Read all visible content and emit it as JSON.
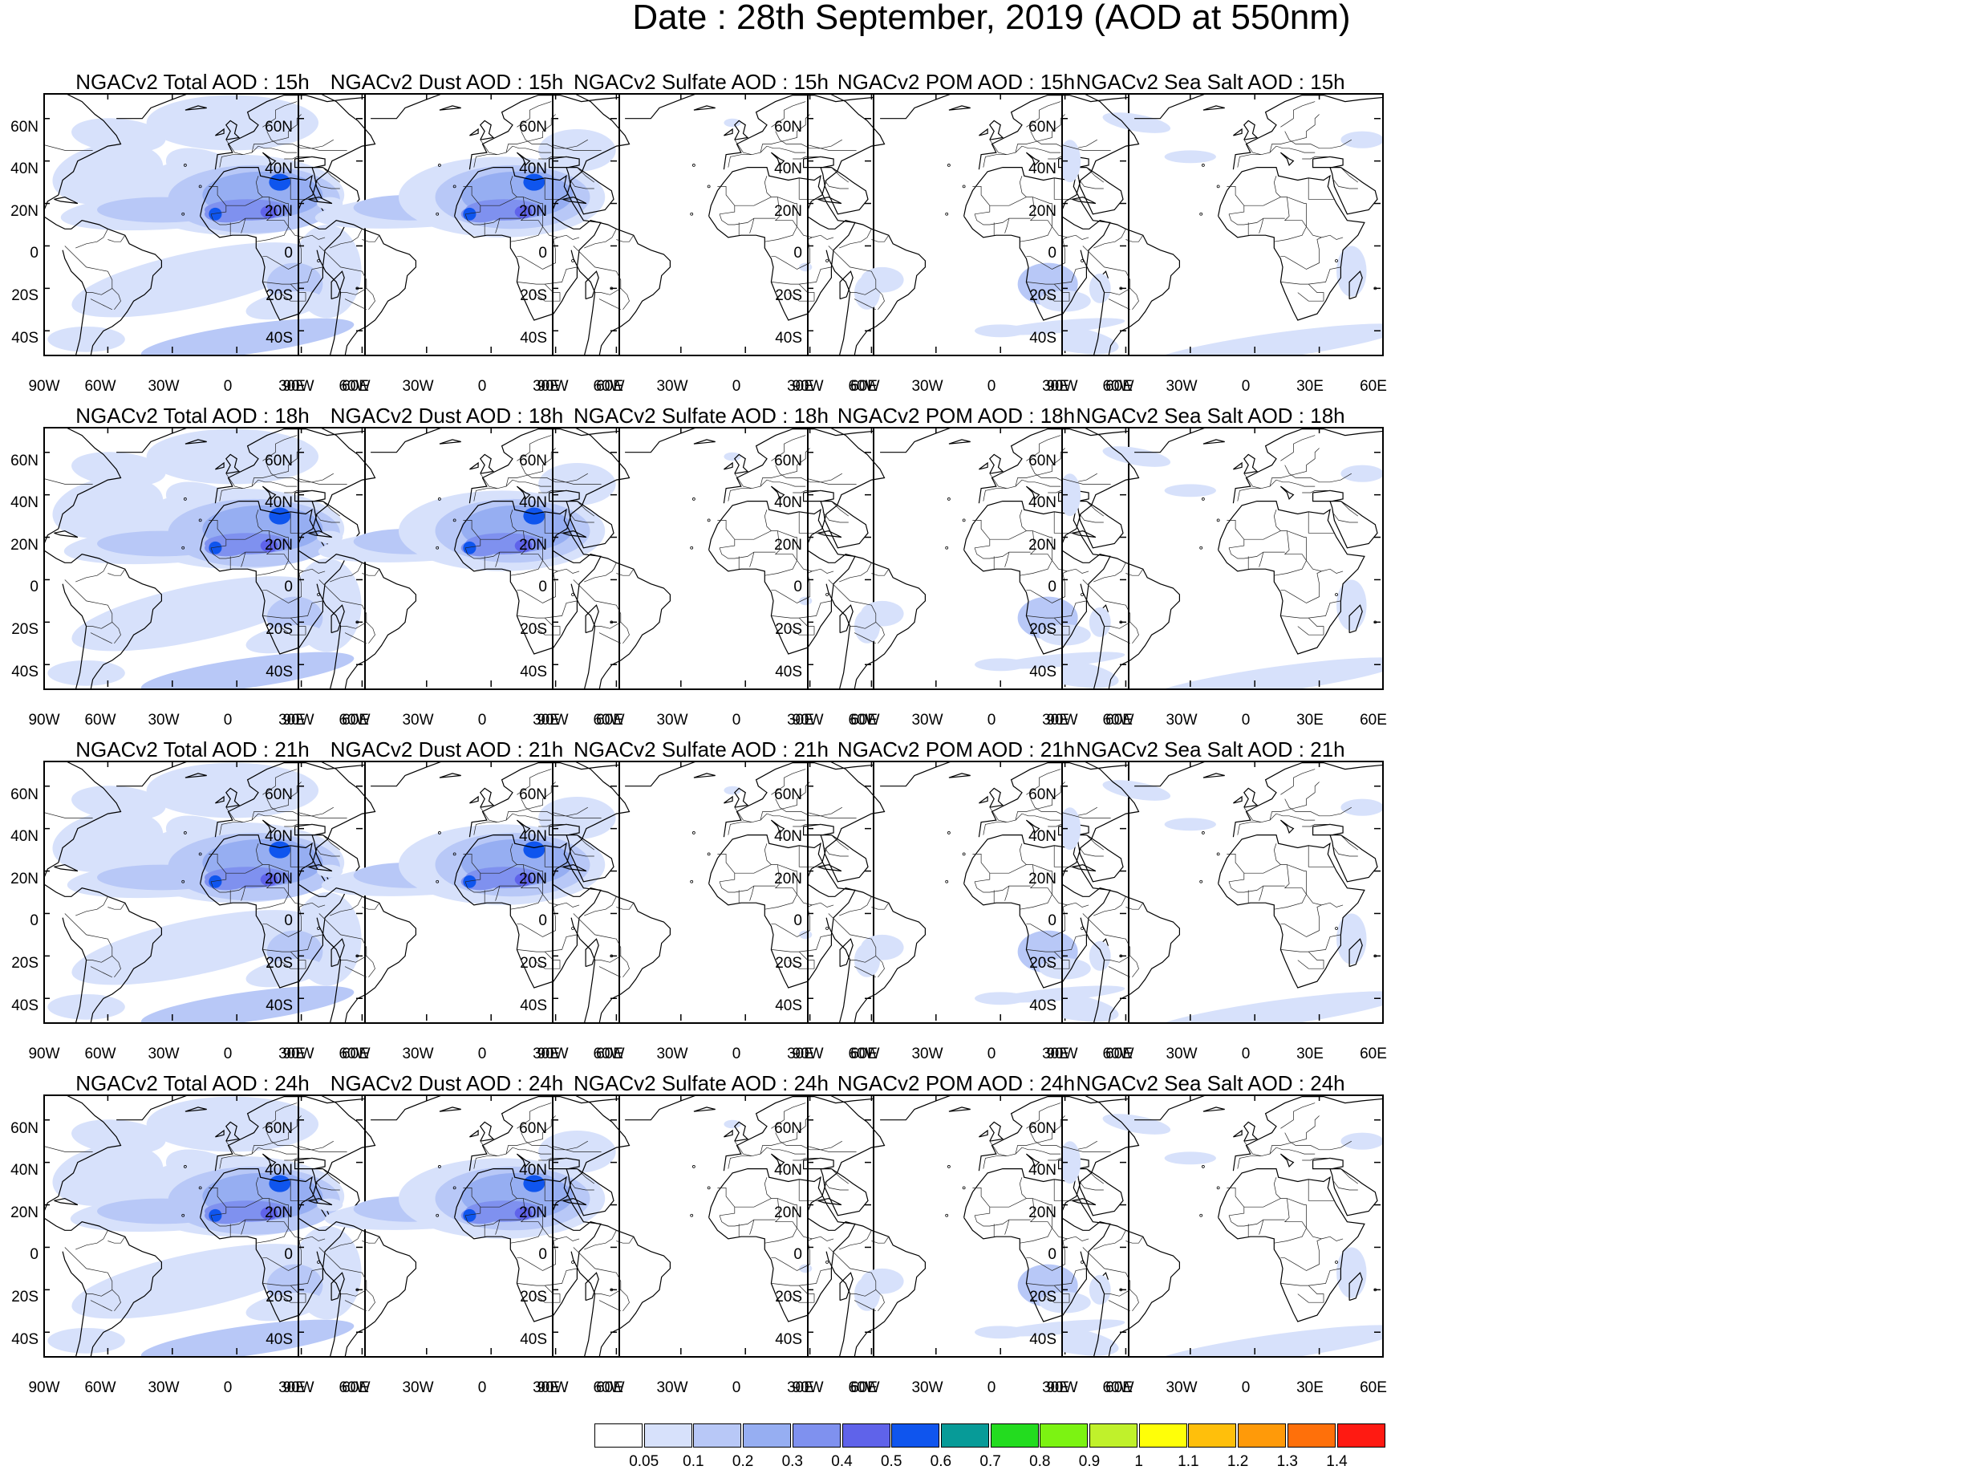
{
  "title": "Date : 28th September, 2019 (AOD at 550nm)",
  "panel_titles": [
    [
      "NGACv2 Total AOD : 15h",
      "NGACv2 Dust AOD : 15h",
      "NGACv2 Sulfate AOD : 15h",
      "NGACv2 POM AOD : 15h",
      "NGACv2 Sea Salt AOD : 15h"
    ],
    [
      "NGACv2 Total AOD : 18h",
      "NGACv2 Dust AOD : 18h",
      "NGACv2 Sulfate AOD : 18h",
      "NGACv2 POM AOD : 18h",
      "NGACv2 Sea Salt AOD : 18h"
    ],
    [
      "NGACv2 Total AOD : 21h",
      "NGACv2 Dust AOD : 21h",
      "NGACv2 Sulfate AOD : 21h",
      "NGACv2 POM AOD : 21h",
      "NGACv2 Sea Salt AOD : 21h"
    ],
    [
      "NGACv2 Total AOD : 24h",
      "NGACv2 Dust AOD : 24h",
      "NGACv2 Sulfate AOD : 24h",
      "NGACv2 POM AOD : 24h",
      "NGACv2 Sea Salt  AOD : 24h"
    ]
  ],
  "axes": {
    "lat_labels": [
      "60N",
      "40N",
      "20N",
      "0",
      "20S",
      "40S"
    ],
    "lat_values": [
      60,
      40,
      20,
      0,
      -20,
      -40
    ],
    "lon_labels": [
      "90W",
      "60W",
      "30W",
      "0",
      "30E",
      "60E"
    ],
    "lon_values": [
      -90,
      -60,
      -30,
      0,
      30,
      60
    ],
    "lat_range": [
      -52,
      72
    ],
    "lon_range": [
      -90,
      60
    ]
  },
  "colorbar": {
    "labels": [
      "0.05",
      "0.1",
      "0.2",
      "0.3",
      "0.4",
      "0.5",
      "0.6",
      "0.7",
      "0.8",
      "0.9",
      "1",
      "1.1",
      "1.2",
      "1.3",
      "1.4"
    ],
    "colors": [
      "#ffffff",
      "#d7e1fb",
      "#b8c8f7",
      "#96aef2",
      "#7f91ef",
      "#5f63ea",
      "#0f55ee",
      "#079b98",
      "#23dc1f",
      "#7cf312",
      "#c0f12b",
      "#ffff08",
      "#ffbf0b",
      "#ff9a09",
      "#ff700a",
      "#ff1a12"
    ]
  }
}
